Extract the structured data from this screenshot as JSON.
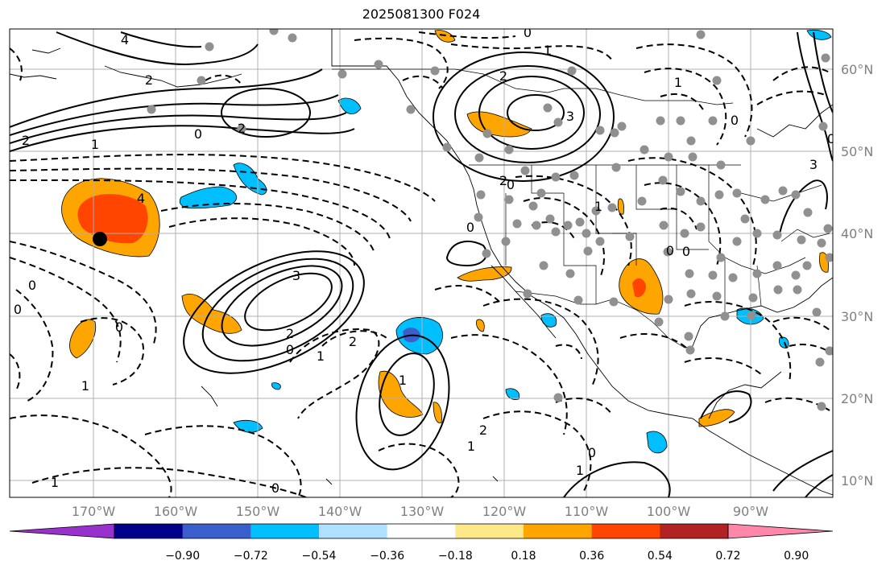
{
  "title": "2025081300 F024",
  "lat_labels": [
    "60°N",
    "50°N",
    "40°N",
    "30°N",
    "20°N",
    "10°N"
  ],
  "lon_labels": [
    "170°W",
    "160°W",
    "150°W",
    "140°W",
    "130°W",
    "120°W",
    "110°W",
    "100°W",
    "90°W"
  ],
  "colorbar": {
    "ticks": [
      "−0.90",
      "−0.72",
      "−0.54",
      "−0.36",
      "−0.18",
      "0.18",
      "0.36",
      "0.54",
      "0.72",
      "0.90"
    ],
    "colors": [
      "#9932cc",
      "#00008b",
      "#3a5fcd",
      "#00bfff",
      "#afe0ff",
      "#ffffff",
      "#ffe88a",
      "#ffa500",
      "#ff4500",
      "#b22222",
      "#ff88aa"
    ]
  },
  "contour_labels": [
    "4",
    "2",
    "2",
    "0",
    "2",
    "1",
    "0",
    "4",
    "3",
    "2",
    "2",
    "3",
    "2",
    "1",
    "0",
    "0",
    "0",
    "1",
    "0",
    "0",
    "1",
    "2",
    "1",
    "0",
    "0",
    "0",
    "1",
    "1",
    "0",
    "1",
    "0",
    "1",
    "2",
    "3",
    "0",
    "1",
    "0"
  ]
}
